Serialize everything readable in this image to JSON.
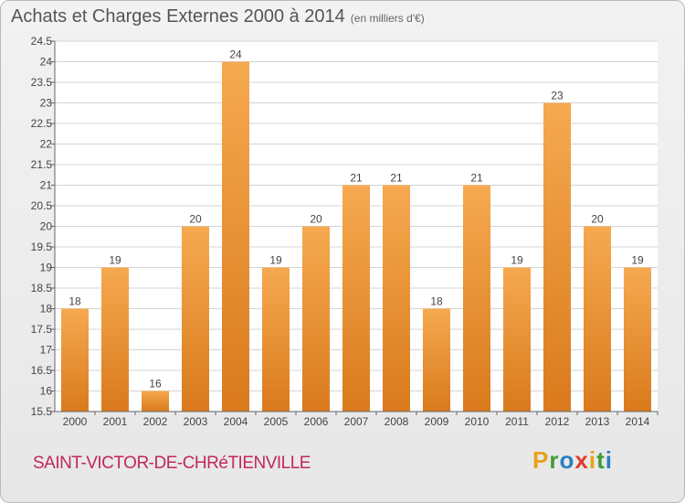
{
  "header": {
    "title": "Achats et Charges Externes 2000 à 2014",
    "unit": "(en milliers d'€)"
  },
  "footer": {
    "commune": "SAINT-VICTOR-DE-CHRéTIENVILLE",
    "logo": [
      "P",
      "r",
      "o",
      "x",
      "i",
      "t",
      "i"
    ],
    "logo_colors": [
      "#e8a21a",
      "#3f9c35",
      "#2a7fc1",
      "#e23b2e",
      "#e8a21a",
      "#3f9c35",
      "#2a7fc1"
    ]
  },
  "colors": {
    "bar_light": "#f6a950",
    "bar_dark": "#d97a1c",
    "grid": "#d4d4d4",
    "axis_text": "#444444"
  },
  "chart_data": {
    "type": "bar",
    "categories": [
      "2000",
      "2001",
      "2002",
      "2003",
      "2004",
      "2005",
      "2006",
      "2007",
      "2008",
      "2009",
      "2010",
      "2011",
      "2012",
      "2013",
      "2014"
    ],
    "values": [
      18,
      19,
      16,
      20,
      24,
      19,
      20,
      21,
      21,
      18,
      21,
      19,
      23,
      20,
      19
    ],
    "data_labels": [
      "18",
      "19",
      "16",
      "20",
      "24",
      "19",
      "20",
      "21",
      "21",
      "18",
      "21",
      "19",
      "23",
      "20",
      "19"
    ],
    "ylim": [
      15.5,
      24.5
    ],
    "yticks": [
      "15.5",
      "16",
      "16.5",
      "17",
      "17.5",
      "18",
      "18.5",
      "19",
      "19.5",
      "20",
      "20.5",
      "21",
      "21.5",
      "22",
      "22.5",
      "23",
      "23.5",
      "24",
      "24.5"
    ],
    "grid": true,
    "xlabel": "",
    "ylabel": ""
  }
}
